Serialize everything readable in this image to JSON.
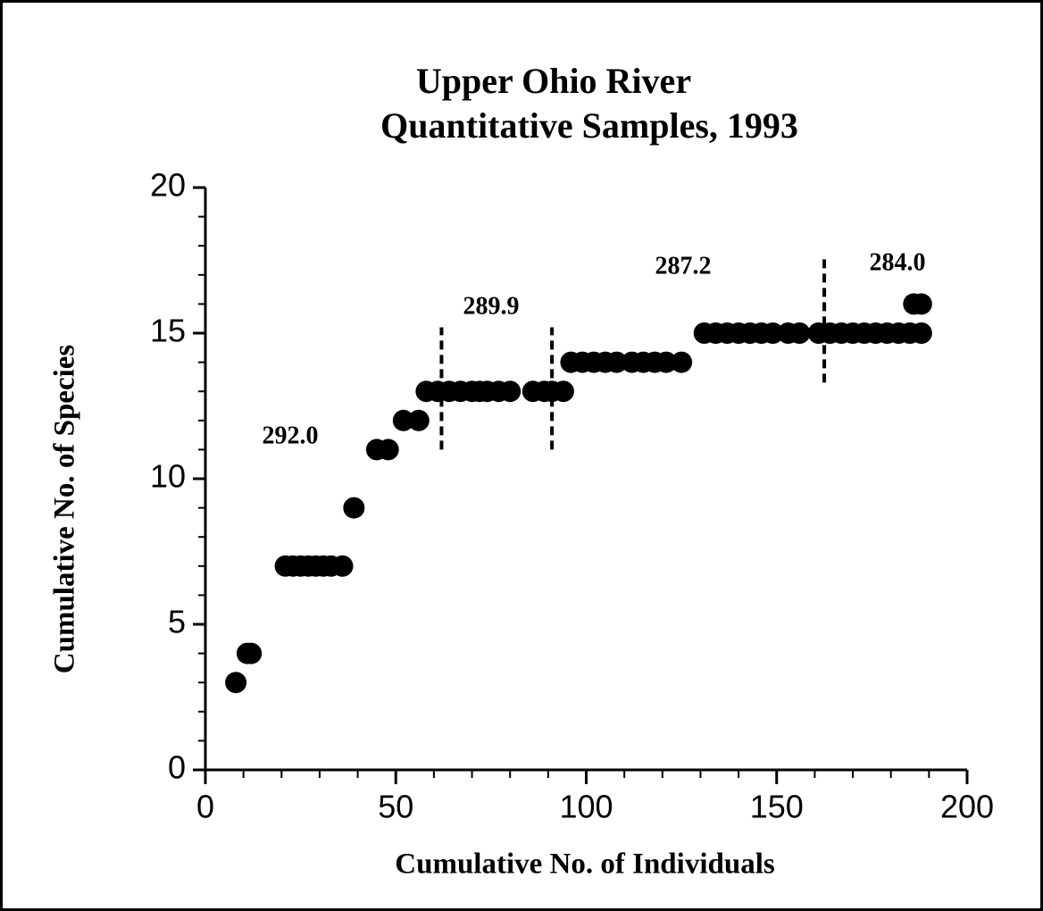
{
  "chart_data": {
    "type": "scatter",
    "title": "Upper  Ohio  River",
    "subtitle": "Quantitative  Samples,  1993",
    "x_label": "Cumulative  No.  of  Individuals",
    "y_label": "Cumulative  No.  of   Species",
    "color": "#000000",
    "x": [
      8,
      11,
      12,
      21,
      23,
      25,
      27,
      29,
      31,
      33,
      36,
      39,
      45,
      48,
      52,
      56,
      58,
      61,
      64,
      67,
      70,
      72,
      74,
      77,
      80,
      86,
      89,
      91,
      94,
      96,
      99,
      102,
      105,
      108,
      112,
      115,
      118,
      121,
      125,
      131,
      134,
      137,
      140,
      143,
      146,
      149,
      153,
      156,
      161,
      164,
      167,
      170,
      173,
      176,
      179,
      182,
      185,
      188,
      186,
      188
    ],
    "y": [
      3,
      4,
      4,
      7,
      7,
      7,
      7,
      7,
      7,
      7,
      7,
      9,
      11,
      11,
      12,
      12,
      13,
      13,
      13,
      13,
      13,
      13,
      13,
      13,
      13,
      13,
      13,
      13,
      13,
      14,
      14,
      14,
      14,
      14,
      14,
      14,
      14,
      14,
      14,
      15,
      15,
      15,
      15,
      15,
      15,
      15,
      15,
      15,
      15,
      15,
      15,
      15,
      15,
      15,
      15,
      15,
      15,
      15,
      16,
      16
    ],
    "xlim": [
      0,
      200
    ],
    "xticks": [
      0,
      50,
      100,
      150,
      200
    ],
    "xminorticks": [
      10,
      20,
      30,
      40,
      60,
      70,
      80,
      90,
      110,
      120,
      130,
      140,
      160,
      170,
      180,
      190
    ],
    "ylim": [
      0,
      20
    ],
    "yticks": [
      0,
      5,
      10,
      15,
      20
    ],
    "yminorticks": [
      1,
      2,
      3,
      4,
      6,
      7,
      8,
      9,
      11,
      12,
      13,
      14,
      16,
      17,
      18,
      19
    ],
    "vlines": [
      {
        "x": 62,
        "y": [
          11,
          15.2
        ]
      },
      {
        "x": 91,
        "y": [
          11,
          15.2
        ]
      },
      {
        "x": 162.5,
        "y": [
          13.3,
          17.6
        ]
      }
    ],
    "annotations": [
      "292.0",
      "289.9",
      "287.2",
      "284.0"
    ]
  }
}
